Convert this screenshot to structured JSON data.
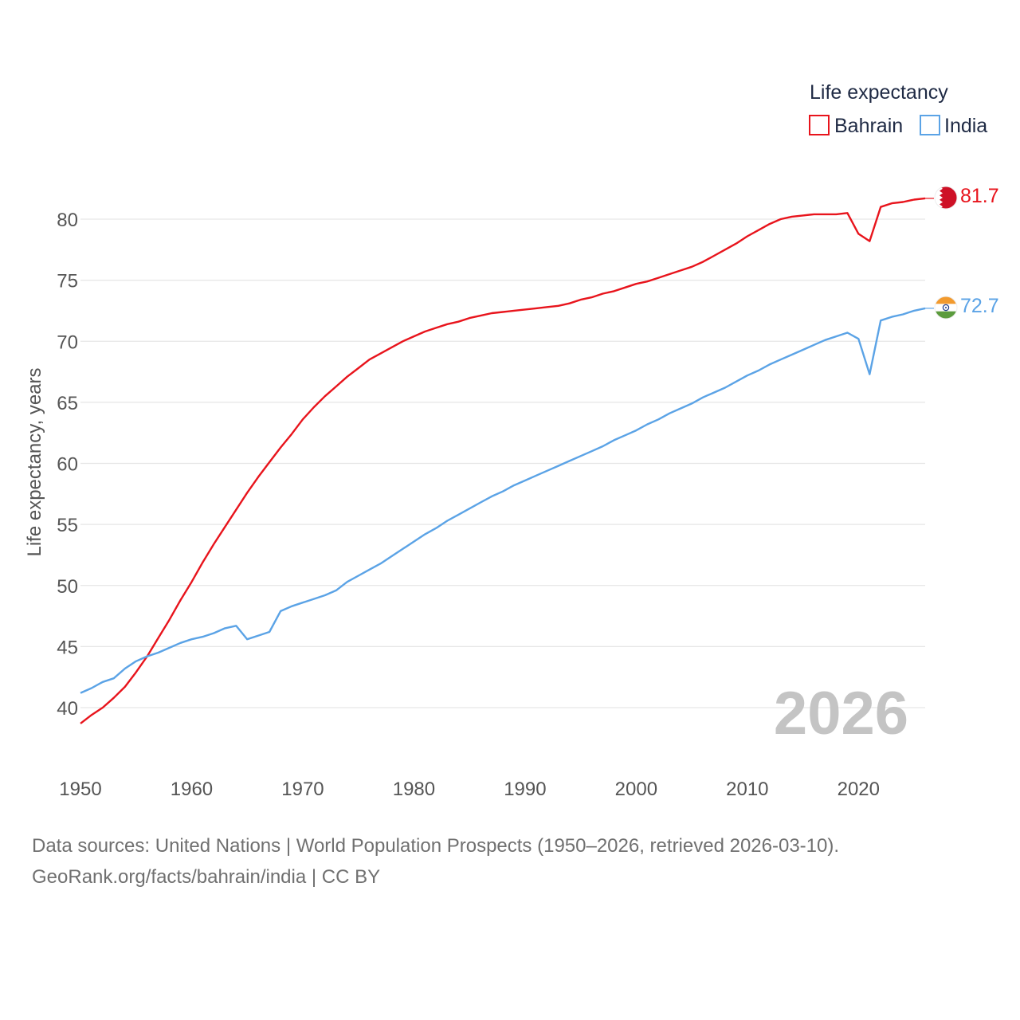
{
  "colors": {
    "bahrain": "#e8141c",
    "india": "#5ba3e6",
    "grid": "#e6e6e6",
    "tick_text": "#555555",
    "watermark": "#c4c4c4"
  },
  "source": {
    "line1": "Data sources: United Nations | World Population Prospects (1950–2026, retrieved 2026-03-10).",
    "line2": "GeoRank.org/facts/bahrain/india | CC BY"
  },
  "chart_data": {
    "type": "line",
    "title": "",
    "xlabel": "",
    "ylabel": "Life expectancy, years",
    "xlim": [
      1950,
      2026
    ],
    "ylim": [
      36,
      84
    ],
    "grid": true,
    "legend_position": "top-right",
    "legend_title": "Life expectancy",
    "year_watermark": "2026",
    "x_ticks": [
      1950,
      1960,
      1970,
      1980,
      1990,
      2000,
      2010,
      2020
    ],
    "y_ticks": [
      40,
      45,
      50,
      55,
      60,
      65,
      70,
      75,
      80
    ],
    "x_tick_labels": [
      "1950",
      "1960",
      "1970",
      "1980",
      "1990",
      "2000",
      "2010",
      "2020"
    ],
    "y_tick_labels": [
      "40",
      "45",
      "50",
      "55",
      "60",
      "65",
      "70",
      "75",
      "80"
    ],
    "series": [
      {
        "name": "Bahrain",
        "color": "#e8141c",
        "end_label": "81.7",
        "flag_icon": "bahrain-flag-icon",
        "points": [
          [
            1950,
            38.7
          ],
          [
            1951,
            39.4
          ],
          [
            1952,
            40.0
          ],
          [
            1953,
            40.8
          ],
          [
            1954,
            41.7
          ],
          [
            1955,
            42.9
          ],
          [
            1956,
            44.2
          ],
          [
            1957,
            45.7
          ],
          [
            1958,
            47.2
          ],
          [
            1959,
            48.8
          ],
          [
            1960,
            50.3
          ],
          [
            1961,
            51.9
          ],
          [
            1962,
            53.4
          ],
          [
            1963,
            54.8
          ],
          [
            1964,
            56.2
          ],
          [
            1965,
            57.6
          ],
          [
            1966,
            58.9
          ],
          [
            1967,
            60.1
          ],
          [
            1968,
            61.3
          ],
          [
            1969,
            62.4
          ],
          [
            1970,
            63.6
          ],
          [
            1971,
            64.6
          ],
          [
            1972,
            65.5
          ],
          [
            1973,
            66.3
          ],
          [
            1974,
            67.1
          ],
          [
            1975,
            67.8
          ],
          [
            1976,
            68.5
          ],
          [
            1977,
            69.0
          ],
          [
            1978,
            69.5
          ],
          [
            1979,
            70.0
          ],
          [
            1980,
            70.4
          ],
          [
            1981,
            70.8
          ],
          [
            1982,
            71.1
          ],
          [
            1983,
            71.4
          ],
          [
            1984,
            71.6
          ],
          [
            1985,
            71.9
          ],
          [
            1986,
            72.1
          ],
          [
            1987,
            72.3
          ],
          [
            1988,
            72.4
          ],
          [
            1989,
            72.5
          ],
          [
            1990,
            72.6
          ],
          [
            1991,
            72.7
          ],
          [
            1992,
            72.8
          ],
          [
            1993,
            72.9
          ],
          [
            1994,
            73.1
          ],
          [
            1995,
            73.4
          ],
          [
            1996,
            73.6
          ],
          [
            1997,
            73.9
          ],
          [
            1998,
            74.1
          ],
          [
            1999,
            74.4
          ],
          [
            2000,
            74.7
          ],
          [
            2001,
            74.9
          ],
          [
            2002,
            75.2
          ],
          [
            2003,
            75.5
          ],
          [
            2004,
            75.8
          ],
          [
            2005,
            76.1
          ],
          [
            2006,
            76.5
          ],
          [
            2007,
            77.0
          ],
          [
            2008,
            77.5
          ],
          [
            2009,
            78.0
          ],
          [
            2010,
            78.6
          ],
          [
            2011,
            79.1
          ],
          [
            2012,
            79.6
          ],
          [
            2013,
            80.0
          ],
          [
            2014,
            80.2
          ],
          [
            2015,
            80.3
          ],
          [
            2016,
            80.4
          ],
          [
            2017,
            80.4
          ],
          [
            2018,
            80.4
          ],
          [
            2019,
            80.5
          ],
          [
            2020,
            78.8
          ],
          [
            2021,
            78.2
          ],
          [
            2022,
            81.0
          ],
          [
            2023,
            81.3
          ],
          [
            2024,
            81.4
          ],
          [
            2025,
            81.6
          ],
          [
            2026,
            81.7
          ]
        ]
      },
      {
        "name": "India",
        "color": "#5ba3e6",
        "end_label": "72.7",
        "flag_icon": "india-flag-icon",
        "points": [
          [
            1950,
            41.2
          ],
          [
            1951,
            41.6
          ],
          [
            1952,
            42.1
          ],
          [
            1953,
            42.4
          ],
          [
            1954,
            43.2
          ],
          [
            1955,
            43.8
          ],
          [
            1956,
            44.2
          ],
          [
            1957,
            44.5
          ],
          [
            1958,
            44.9
          ],
          [
            1959,
            45.3
          ],
          [
            1960,
            45.6
          ],
          [
            1961,
            45.8
          ],
          [
            1962,
            46.1
          ],
          [
            1963,
            46.5
          ],
          [
            1964,
            46.7
          ],
          [
            1965,
            45.6
          ],
          [
            1966,
            45.9
          ],
          [
            1967,
            46.2
          ],
          [
            1968,
            47.9
          ],
          [
            1969,
            48.3
          ],
          [
            1970,
            48.6
          ],
          [
            1971,
            48.9
          ],
          [
            1972,
            49.2
          ],
          [
            1973,
            49.6
          ],
          [
            1974,
            50.3
          ],
          [
            1975,
            50.8
          ],
          [
            1976,
            51.3
          ],
          [
            1977,
            51.8
          ],
          [
            1978,
            52.4
          ],
          [
            1979,
            53.0
          ],
          [
            1980,
            53.6
          ],
          [
            1981,
            54.2
          ],
          [
            1982,
            54.7
          ],
          [
            1983,
            55.3
          ],
          [
            1984,
            55.8
          ],
          [
            1985,
            56.3
          ],
          [
            1986,
            56.8
          ],
          [
            1987,
            57.3
          ],
          [
            1988,
            57.7
          ],
          [
            1989,
            58.2
          ],
          [
            1990,
            58.6
          ],
          [
            1991,
            59.0
          ],
          [
            1992,
            59.4
          ],
          [
            1993,
            59.8
          ],
          [
            1994,
            60.2
          ],
          [
            1995,
            60.6
          ],
          [
            1996,
            61.0
          ],
          [
            1997,
            61.4
          ],
          [
            1998,
            61.9
          ],
          [
            1999,
            62.3
          ],
          [
            2000,
            62.7
          ],
          [
            2001,
            63.2
          ],
          [
            2002,
            63.6
          ],
          [
            2003,
            64.1
          ],
          [
            2004,
            64.5
          ],
          [
            2005,
            64.9
          ],
          [
            2006,
            65.4
          ],
          [
            2007,
            65.8
          ],
          [
            2008,
            66.2
          ],
          [
            2009,
            66.7
          ],
          [
            2010,
            67.2
          ],
          [
            2011,
            67.6
          ],
          [
            2012,
            68.1
          ],
          [
            2013,
            68.5
          ],
          [
            2014,
            68.9
          ],
          [
            2015,
            69.3
          ],
          [
            2016,
            69.7
          ],
          [
            2017,
            70.1
          ],
          [
            2018,
            70.4
          ],
          [
            2019,
            70.7
          ],
          [
            2020,
            70.2
          ],
          [
            2021,
            67.3
          ],
          [
            2022,
            71.7
          ],
          [
            2023,
            72.0
          ],
          [
            2024,
            72.2
          ],
          [
            2025,
            72.5
          ],
          [
            2026,
            72.7
          ]
        ]
      }
    ]
  }
}
